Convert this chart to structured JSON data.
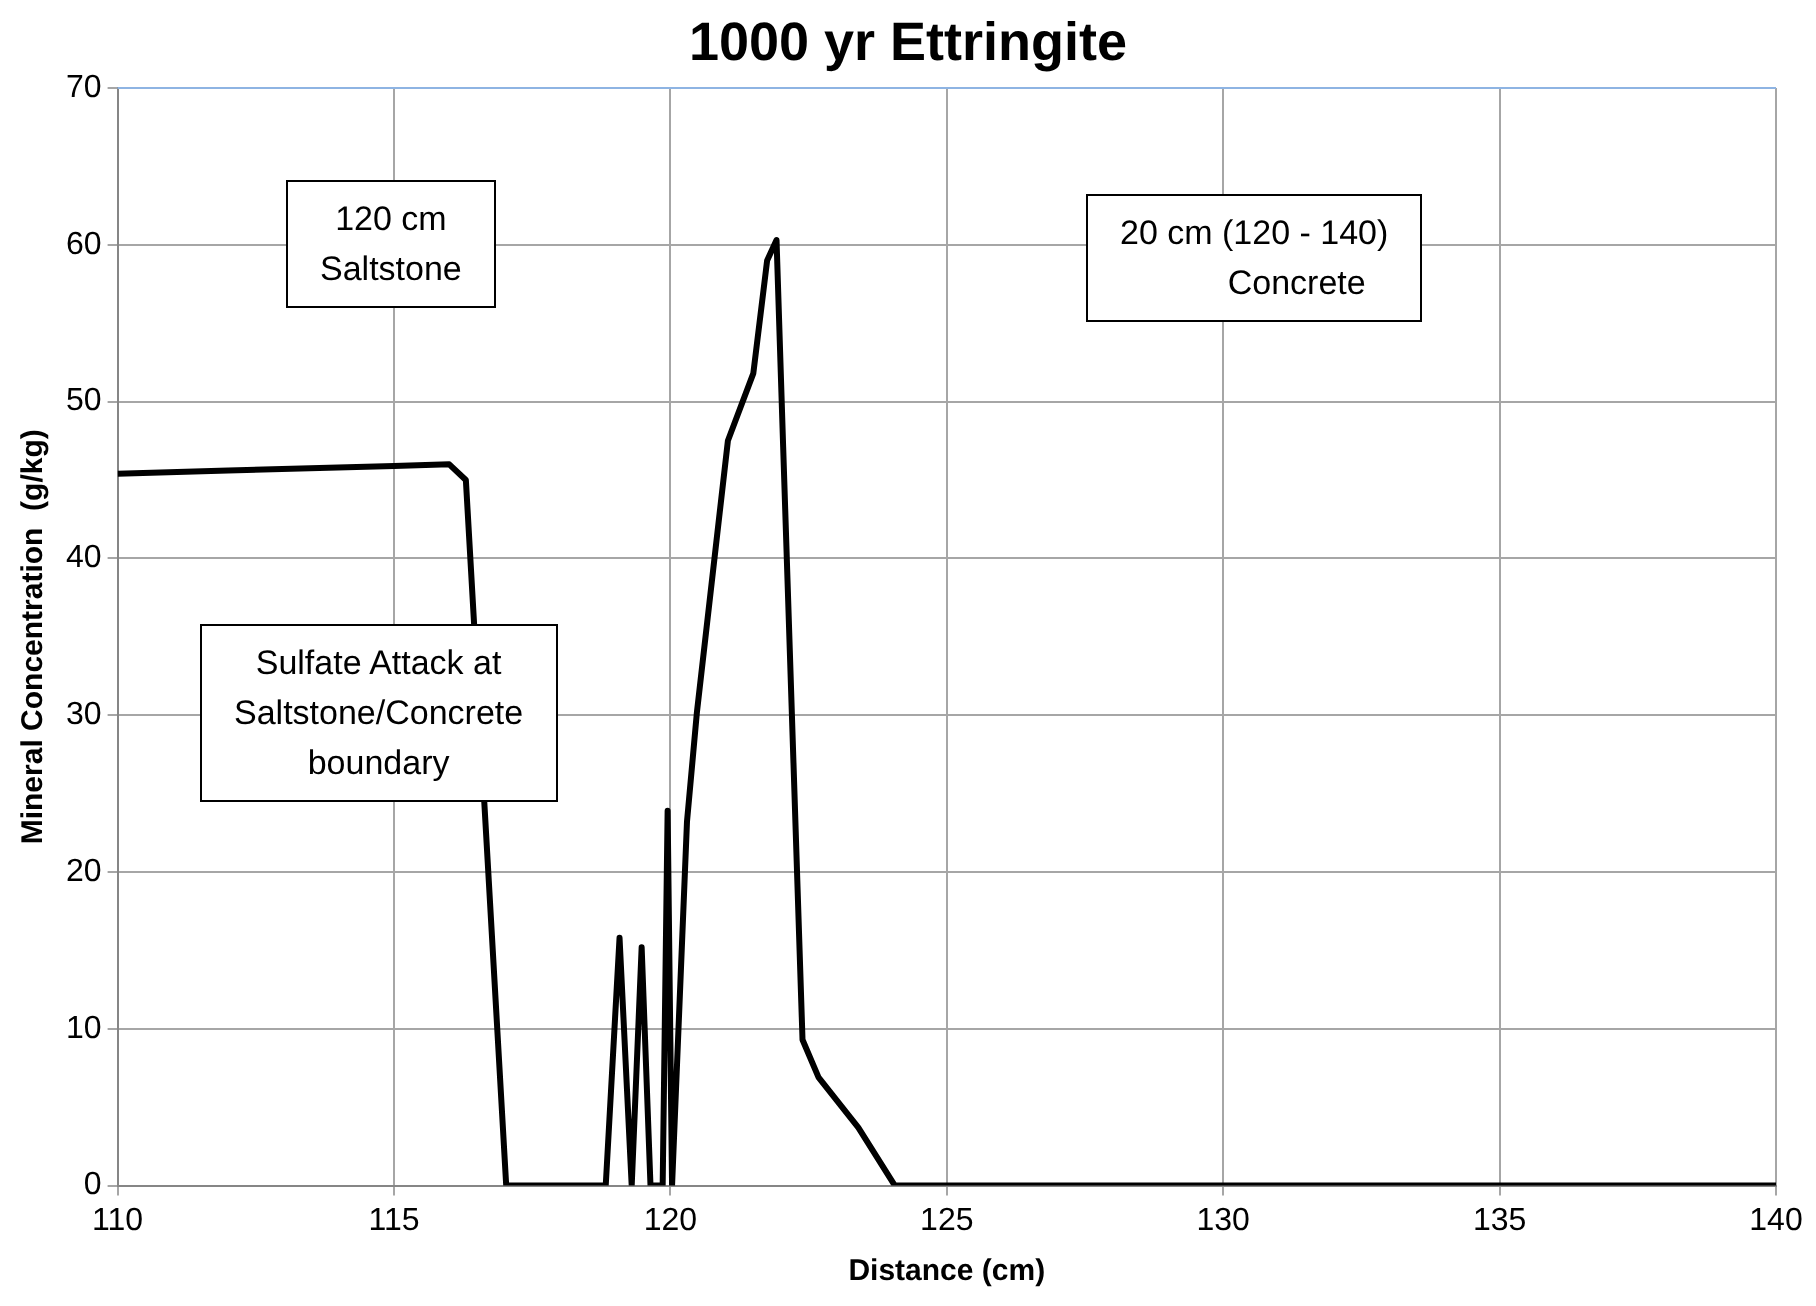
{
  "chart_data": {
    "type": "line",
    "title": "1000 yr Ettringite",
    "xlabel": "Distance (cm)",
    "ylabel": "Mineral Concentration  (g/kg)",
    "x": [
      110,
      112,
      115,
      116,
      116.3,
      117.03,
      118.83,
      119.08,
      119.3,
      119.48,
      119.64,
      119.86,
      119.95,
      120.03,
      120.3,
      120.48,
      121.04,
      121.5,
      121.75,
      121.92,
      122.04,
      122.39,
      122.68,
      123.4,
      124.06,
      130,
      140
    ],
    "series": [
      {
        "color": "#000000",
        "values": [
          45.4,
          45.6,
          45.9,
          46,
          45,
          0,
          0,
          15.8,
          0,
          15.2,
          0,
          0,
          23.9,
          0,
          23.2,
          30.2,
          47.5,
          51.8,
          59,
          60.3,
          47.1,
          9.3,
          6.9,
          3.7,
          0,
          0,
          0
        ]
      }
    ],
    "xlim": [
      110,
      140
    ],
    "xticks": [
      110,
      115,
      120,
      125,
      130,
      135,
      140
    ],
    "ylim": [
      0,
      70
    ],
    "yticks": [
      0,
      10,
      20,
      30,
      40,
      50,
      60,
      70
    ],
    "grid": true,
    "legend": false,
    "marker": "none",
    "line_style": "solid",
    "annotations": [
      "120 cm\nSaltstone",
      "20 cm (120 - 140)\n         Concrete",
      "Sulfate Attack at\nSaltstone/Concrete\nboundary"
    ]
  }
}
